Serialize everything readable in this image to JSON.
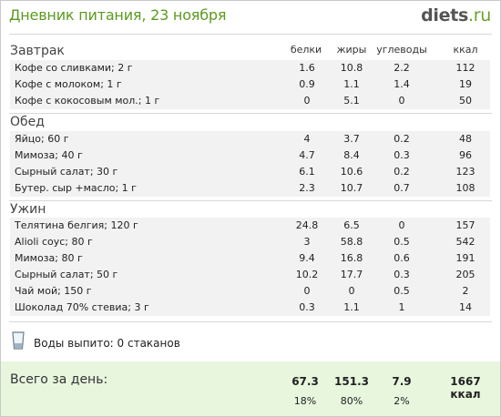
{
  "header": {
    "title": "Дневник питания, 23 ноября",
    "logo_main": "diets",
    "logo_tld": ".ru"
  },
  "columns": {
    "protein": "белки",
    "fat": "жиры",
    "carbs": "углеводы",
    "kcal": "ккал"
  },
  "sections": [
    {
      "name": "Завтрак",
      "rows": [
        {
          "name": "Кофе со сливками; 2 г",
          "protein": "1.6",
          "fat": "10.8",
          "carbs": "2.2",
          "kcal": "112"
        },
        {
          "name": "Кофе с молоком; 1 г",
          "protein": "0.9",
          "fat": "1.1",
          "carbs": "1.4",
          "kcal": "19"
        },
        {
          "name": "Кофе с кокосовым мол.; 1 г",
          "protein": "0",
          "fat": "5.1",
          "carbs": "0",
          "kcal": "50"
        }
      ]
    },
    {
      "name": "Обед",
      "rows": [
        {
          "name": "Яйцо; 60 г",
          "protein": "4",
          "fat": "3.7",
          "carbs": "0.2",
          "kcal": "48"
        },
        {
          "name": "Мимоза; 40 г",
          "protein": "4.7",
          "fat": "8.4",
          "carbs": "0.3",
          "kcal": "96"
        },
        {
          "name": "Сырный салат; 30 г",
          "protein": "6.1",
          "fat": "10.6",
          "carbs": "0.2",
          "kcal": "123"
        },
        {
          "name": "Бутер. сыр +масло; 1 г",
          "protein": "2.3",
          "fat": "10.7",
          "carbs": "0.7",
          "kcal": "108"
        }
      ]
    },
    {
      "name": "Ужин",
      "rows": [
        {
          "name": "Телятина белгия; 120 г",
          "protein": "24.8",
          "fat": "6.5",
          "carbs": "0",
          "kcal": "157"
        },
        {
          "name": "Alioli соус; 80 г",
          "protein": "3",
          "fat": "58.8",
          "carbs": "0.5",
          "kcal": "542"
        },
        {
          "name": "Мимоза; 80 г",
          "protein": "9.4",
          "fat": "16.8",
          "carbs": "0.6",
          "kcal": "191"
        },
        {
          "name": "Сырный салат; 50 г",
          "protein": "10.2",
          "fat": "17.7",
          "carbs": "0.3",
          "kcal": "205"
        },
        {
          "name": "Чай мой; 150 г",
          "protein": "0",
          "fat": "0",
          "carbs": "0.5",
          "kcal": "2"
        },
        {
          "name": "Шоколад 70% стевиа; 3 г",
          "protein": "0.3",
          "fat": "1.1",
          "carbs": "1",
          "kcal": "14"
        }
      ]
    }
  ],
  "water": {
    "icon": "glass-icon",
    "text": "Воды выпито: 0 стаканов"
  },
  "total": {
    "label": "Всего за день:",
    "protein": "67.3",
    "fat": "151.3",
    "carbs": "7.9",
    "kcal": "1667 ккал",
    "protein_pct": "18%",
    "fat_pct": "80%",
    "carbs_pct": "2%"
  },
  "colors": {
    "title": "#5c9a1f",
    "row_bg": "#f2f2f2",
    "total_bg": "#e7f6dd"
  }
}
